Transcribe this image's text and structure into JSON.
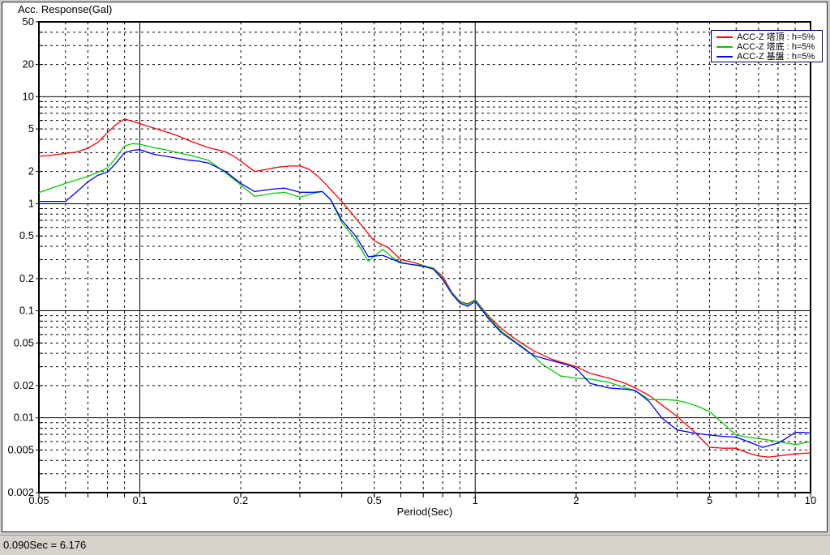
{
  "window": {
    "background": "#cfcfcf",
    "panel_background": "#ffffff"
  },
  "status_bar": {
    "text": "0.090Sec = 6.176"
  },
  "chart_data": {
    "type": "line",
    "title": "Acc. Response(Gal)",
    "xlabel": "Period(Sec)",
    "ylabel": "Acc. Response(Gal)",
    "x_scale": "log",
    "y_scale": "log",
    "xlim": [
      0.05,
      10
    ],
    "ylim": [
      0.002,
      50
    ],
    "x_ticks": [
      0.05,
      0.1,
      0.2,
      0.5,
      1,
      2,
      5,
      10
    ],
    "y_ticks": [
      50,
      20,
      10,
      5,
      2,
      1,
      0.5,
      0.2,
      0.1,
      0.05,
      0.02,
      0.01,
      0.005,
      0.002
    ],
    "grid": "major solid, minor dashed, full log grid",
    "legend_position": "top-right",
    "frame_color": "#000000",
    "series": [
      {
        "name": "ACC-Z 塔頂 : h=5%",
        "color": "#ff0000",
        "points": [
          [
            0.05,
            2.77
          ],
          [
            0.055,
            2.85
          ],
          [
            0.06,
            2.95
          ],
          [
            0.065,
            3.05
          ],
          [
            0.07,
            3.3
          ],
          [
            0.075,
            3.75
          ],
          [
            0.08,
            4.6
          ],
          [
            0.085,
            5.5
          ],
          [
            0.09,
            6.176
          ],
          [
            0.095,
            5.9
          ],
          [
            0.1,
            5.6
          ],
          [
            0.11,
            5.1
          ],
          [
            0.12,
            4.7
          ],
          [
            0.13,
            4.3
          ],
          [
            0.14,
            3.9
          ],
          [
            0.15,
            3.6
          ],
          [
            0.16,
            3.35
          ],
          [
            0.17,
            3.2
          ],
          [
            0.18,
            3.05
          ],
          [
            0.19,
            2.8
          ],
          [
            0.2,
            2.5
          ],
          [
            0.22,
            2.0
          ],
          [
            0.24,
            2.1
          ],
          [
            0.26,
            2.2
          ],
          [
            0.28,
            2.25
          ],
          [
            0.3,
            2.25
          ],
          [
            0.32,
            2.1
          ],
          [
            0.34,
            1.8
          ],
          [
            0.36,
            1.5
          ],
          [
            0.38,
            1.25
          ],
          [
            0.4,
            1.05
          ],
          [
            0.43,
            0.8
          ],
          [
            0.46,
            0.62
          ],
          [
            0.5,
            0.45
          ],
          [
            0.55,
            0.39
          ],
          [
            0.6,
            0.3
          ],
          [
            0.65,
            0.285
          ],
          [
            0.7,
            0.265
          ],
          [
            0.75,
            0.25
          ],
          [
            0.8,
            0.21
          ],
          [
            0.85,
            0.15
          ],
          [
            0.9,
            0.122
          ],
          [
            0.95,
            0.116
          ],
          [
            1.0,
            0.127
          ],
          [
            1.1,
            0.088
          ],
          [
            1.2,
            0.068
          ],
          [
            1.3,
            0.056
          ],
          [
            1.4,
            0.048
          ],
          [
            1.5,
            0.042
          ],
          [
            1.7,
            0.035
          ],
          [
            2.0,
            0.03
          ],
          [
            2.2,
            0.026
          ],
          [
            2.5,
            0.0235
          ],
          [
            2.8,
            0.021
          ],
          [
            3.0,
            0.019
          ],
          [
            3.3,
            0.0162
          ],
          [
            3.6,
            0.0132
          ],
          [
            4.0,
            0.0103
          ],
          [
            4.5,
            0.0074
          ],
          [
            5.0,
            0.0053
          ],
          [
            5.5,
            0.0052
          ],
          [
            6.0,
            0.0052
          ],
          [
            6.5,
            0.0047
          ],
          [
            7.0,
            0.0044
          ],
          [
            7.5,
            0.0043
          ],
          [
            8.0,
            0.0044
          ],
          [
            9.0,
            0.0046
          ],
          [
            10,
            0.0047
          ]
        ]
      },
      {
        "name": "ACC-Z 塔底 : h=5%",
        "color": "#00cc00",
        "points": [
          [
            0.05,
            1.27
          ],
          [
            0.06,
            1.55
          ],
          [
            0.07,
            1.8
          ],
          [
            0.08,
            2.15
          ],
          [
            0.085,
            2.7
          ],
          [
            0.09,
            3.45
          ],
          [
            0.095,
            3.65
          ],
          [
            0.1,
            3.6
          ],
          [
            0.11,
            3.35
          ],
          [
            0.12,
            3.18
          ],
          [
            0.13,
            3.0
          ],
          [
            0.14,
            2.85
          ],
          [
            0.15,
            2.7
          ],
          [
            0.16,
            2.55
          ],
          [
            0.18,
            1.95
          ],
          [
            0.2,
            1.5
          ],
          [
            0.22,
            1.17
          ],
          [
            0.25,
            1.25
          ],
          [
            0.27,
            1.28
          ],
          [
            0.3,
            1.15
          ],
          [
            0.33,
            1.25
          ],
          [
            0.35,
            1.3
          ],
          [
            0.37,
            1.1
          ],
          [
            0.4,
            0.67
          ],
          [
            0.44,
            0.46
          ],
          [
            0.48,
            0.29
          ],
          [
            0.53,
            0.375
          ],
          [
            0.57,
            0.31
          ],
          [
            0.6,
            0.285
          ],
          [
            0.65,
            0.27
          ],
          [
            0.7,
            0.265
          ],
          [
            0.75,
            0.25
          ],
          [
            0.8,
            0.2
          ],
          [
            0.85,
            0.148
          ],
          [
            0.9,
            0.121
          ],
          [
            0.95,
            0.114
          ],
          [
            1.0,
            0.126
          ],
          [
            1.1,
            0.086
          ],
          [
            1.2,
            0.064
          ],
          [
            1.3,
            0.053
          ],
          [
            1.4,
            0.045
          ],
          [
            1.5,
            0.037
          ],
          [
            1.6,
            0.031
          ],
          [
            1.8,
            0.0245
          ],
          [
            2.0,
            0.0235
          ],
          [
            2.2,
            0.023
          ],
          [
            2.5,
            0.0215
          ],
          [
            2.8,
            0.019
          ],
          [
            3.0,
            0.018
          ],
          [
            3.3,
            0.0148
          ],
          [
            3.7,
            0.0148
          ],
          [
            4.0,
            0.0145
          ],
          [
            4.3,
            0.0138
          ],
          [
            4.7,
            0.0125
          ],
          [
            5.0,
            0.0114
          ],
          [
            5.5,
            0.0088
          ],
          [
            6.0,
            0.0069
          ],
          [
            6.5,
            0.0066
          ],
          [
            7.0,
            0.0064
          ],
          [
            7.5,
            0.0062
          ],
          [
            8.0,
            0.006
          ],
          [
            8.5,
            0.0058
          ],
          [
            9.0,
            0.0056
          ],
          [
            9.5,
            0.0058
          ],
          [
            10,
            0.006
          ]
        ]
      },
      {
        "name": "ACC-Z 基盤 : h=5%",
        "color": "#0000ff",
        "points": [
          [
            0.05,
            1.05
          ],
          [
            0.06,
            1.05
          ],
          [
            0.065,
            1.3
          ],
          [
            0.07,
            1.6
          ],
          [
            0.075,
            1.85
          ],
          [
            0.08,
            1.97
          ],
          [
            0.085,
            2.4
          ],
          [
            0.09,
            3.0
          ],
          [
            0.095,
            3.15
          ],
          [
            0.1,
            3.2
          ],
          [
            0.11,
            2.9
          ],
          [
            0.12,
            2.77
          ],
          [
            0.13,
            2.65
          ],
          [
            0.14,
            2.55
          ],
          [
            0.15,
            2.5
          ],
          [
            0.16,
            2.4
          ],
          [
            0.18,
            2.0
          ],
          [
            0.2,
            1.55
          ],
          [
            0.22,
            1.3
          ],
          [
            0.25,
            1.37
          ],
          [
            0.27,
            1.4
          ],
          [
            0.3,
            1.28
          ],
          [
            0.33,
            1.28
          ],
          [
            0.35,
            1.3
          ],
          [
            0.37,
            1.1
          ],
          [
            0.4,
            0.705
          ],
          [
            0.44,
            0.5
          ],
          [
            0.48,
            0.32
          ],
          [
            0.53,
            0.33
          ],
          [
            0.57,
            0.3
          ],
          [
            0.6,
            0.28
          ],
          [
            0.65,
            0.27
          ],
          [
            0.7,
            0.26
          ],
          [
            0.75,
            0.245
          ],
          [
            0.8,
            0.195
          ],
          [
            0.85,
            0.145
          ],
          [
            0.9,
            0.118
          ],
          [
            0.95,
            0.11
          ],
          [
            1.0,
            0.122
          ],
          [
            1.1,
            0.083
          ],
          [
            1.2,
            0.062
          ],
          [
            1.3,
            0.052
          ],
          [
            1.4,
            0.044
          ],
          [
            1.5,
            0.038
          ],
          [
            1.7,
            0.034
          ],
          [
            1.9,
            0.031
          ],
          [
            2.0,
            0.029
          ],
          [
            2.2,
            0.021
          ],
          [
            2.5,
            0.019
          ],
          [
            2.8,
            0.0185
          ],
          [
            3.0,
            0.018
          ],
          [
            3.3,
            0.0142
          ],
          [
            3.6,
            0.01
          ],
          [
            4.0,
            0.0077
          ],
          [
            4.5,
            0.0072
          ],
          [
            5.0,
            0.0069
          ],
          [
            5.5,
            0.0067
          ],
          [
            6.0,
            0.0066
          ],
          [
            6.5,
            0.006
          ],
          [
            7.2,
            0.0053
          ],
          [
            8.0,
            0.0058
          ],
          [
            8.5,
            0.0065
          ],
          [
            9.0,
            0.0073
          ],
          [
            9.5,
            0.0073
          ],
          [
            10,
            0.0072
          ]
        ]
      }
    ]
  }
}
